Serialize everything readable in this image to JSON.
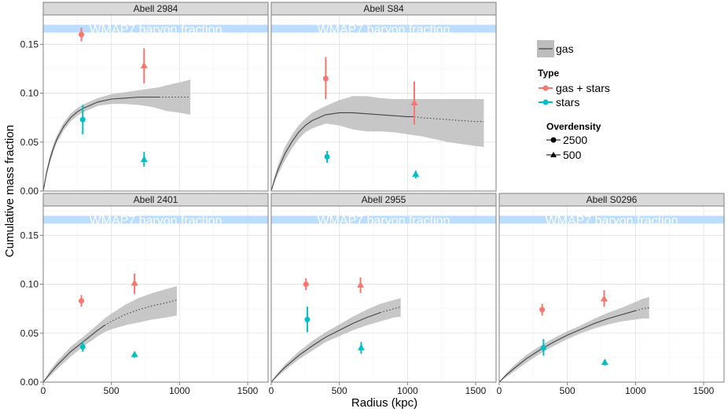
{
  "chart_data": {
    "type": "scatter",
    "xlabel": "Radius (kpc)",
    "ylabel": "Cumulative mass fraction",
    "xlim": [
      0,
      1650
    ],
    "ylim": [
      0,
      0.18
    ],
    "x_ticks": [
      "0",
      "500",
      "1000",
      "1500"
    ],
    "y_ticks": [
      "0.00",
      "0.05",
      "0.10",
      "0.15"
    ],
    "band": {
      "label": "WMAP7 baryon fraction",
      "ymin": 0.162,
      "ymax": 0.17,
      "color": "#BBDDFF"
    },
    "colors": {
      "gas_stars": "#F8766D",
      "stars": "#00BFC4",
      "gas_line": "#444444",
      "ribbon": "#BDBDBD"
    },
    "legend": {
      "gas_label": "gas",
      "type_title": "Type",
      "type_items": [
        "gas + stars",
        "stars"
      ],
      "overdensity_title": "Overdensity",
      "overdensity_items": [
        "2500",
        "500"
      ]
    },
    "panels": [
      {
        "title": "Abell 2984",
        "curve": {
          "x": [
            0,
            25,
            50,
            75,
            100,
            150,
            200,
            250,
            300,
            400,
            500,
            600,
            700,
            800,
            850,
            900,
            1000,
            1080
          ],
          "y": [
            0,
            0.019,
            0.033,
            0.044,
            0.053,
            0.066,
            0.075,
            0.081,
            0.085,
            0.091,
            0.094,
            0.095,
            0.096,
            0.096,
            0.096,
            0.096,
            0.096,
            0.096
          ],
          "lo": [
            0,
            0.016,
            0.029,
            0.04,
            0.049,
            0.062,
            0.071,
            0.077,
            0.081,
            0.087,
            0.089,
            0.089,
            0.088,
            0.086,
            0.084,
            0.082,
            0.08,
            0.078
          ],
          "hi": [
            0,
            0.022,
            0.037,
            0.048,
            0.057,
            0.07,
            0.079,
            0.085,
            0.089,
            0.095,
            0.099,
            0.101,
            0.103,
            0.105,
            0.106,
            0.108,
            0.111,
            0.114
          ],
          "solid_to": 850
        },
        "points": [
          {
            "type": "gas + stars",
            "overdensity": "2500",
            "x": 280,
            "y": 0.16,
            "lo": 0.153,
            "hi": 0.167
          },
          {
            "type": "stars",
            "overdensity": "2500",
            "x": 290,
            "y": 0.073,
            "lo": 0.058,
            "hi": 0.088
          },
          {
            "type": "gas + stars",
            "overdensity": "500",
            "x": 740,
            "y": 0.128,
            "lo": 0.11,
            "hi": 0.146
          },
          {
            "type": "stars",
            "overdensity": "500",
            "x": 740,
            "y": 0.032,
            "lo": 0.025,
            "hi": 0.04
          }
        ]
      },
      {
        "title": "Abell S84",
        "curve": {
          "x": [
            0,
            25,
            50,
            75,
            100,
            150,
            200,
            250,
            300,
            400,
            500,
            600,
            700,
            800,
            900,
            1000,
            1050,
            1100,
            1200,
            1300,
            1400,
            1500,
            1560
          ],
          "y": [
            0,
            0.012,
            0.022,
            0.03,
            0.038,
            0.05,
            0.06,
            0.067,
            0.072,
            0.078,
            0.08,
            0.08,
            0.079,
            0.078,
            0.077,
            0.076,
            0.076,
            0.075,
            0.074,
            0.073,
            0.072,
            0.071,
            0.071
          ],
          "lo": [
            0,
            0.009,
            0.017,
            0.024,
            0.031,
            0.043,
            0.053,
            0.06,
            0.064,
            0.069,
            0.067,
            0.063,
            0.061,
            0.061,
            0.06,
            0.058,
            0.057,
            0.056,
            0.053,
            0.05,
            0.048,
            0.046,
            0.045
          ],
          "hi": [
            0,
            0.015,
            0.027,
            0.036,
            0.045,
            0.057,
            0.067,
            0.074,
            0.08,
            0.087,
            0.093,
            0.097,
            0.097,
            0.095,
            0.094,
            0.094,
            0.094,
            0.094,
            0.094,
            0.094,
            0.094,
            0.094,
            0.094
          ],
          "solid_to": 1050
        },
        "points": [
          {
            "type": "gas + stars",
            "overdensity": "2500",
            "x": 400,
            "y": 0.115,
            "lo": 0.094,
            "hi": 0.137
          },
          {
            "type": "stars",
            "overdensity": "2500",
            "x": 410,
            "y": 0.035,
            "lo": 0.029,
            "hi": 0.041
          },
          {
            "type": "gas + stars",
            "overdensity": "500",
            "x": 1050,
            "y": 0.09,
            "lo": 0.068,
            "hi": 0.112
          },
          {
            "type": "stars",
            "overdensity": "500",
            "x": 1060,
            "y": 0.017,
            "lo": 0.013,
            "hi": 0.021
          }
        ]
      },
      {
        "title": "Abell 2401",
        "curve": {
          "x": [
            0,
            50,
            100,
            200,
            300,
            400,
            450,
            500,
            600,
            700,
            800,
            900,
            980
          ],
          "y": [
            0,
            0.009,
            0.017,
            0.031,
            0.042,
            0.053,
            0.058,
            0.062,
            0.069,
            0.074,
            0.078,
            0.081,
            0.084
          ],
          "lo": [
            0,
            0.006,
            0.013,
            0.026,
            0.037,
            0.047,
            0.051,
            0.054,
            0.058,
            0.061,
            0.064,
            0.066,
            0.068
          ],
          "hi": [
            0,
            0.012,
            0.021,
            0.036,
            0.047,
            0.059,
            0.065,
            0.07,
            0.079,
            0.086,
            0.091,
            0.095,
            0.098
          ],
          "solid_to": 450
        },
        "points": [
          {
            "type": "gas + stars",
            "overdensity": "2500",
            "x": 280,
            "y": 0.083,
            "lo": 0.077,
            "hi": 0.089
          },
          {
            "type": "stars",
            "overdensity": "2500",
            "x": 290,
            "y": 0.036,
            "lo": 0.031,
            "hi": 0.042
          },
          {
            "type": "gas + stars",
            "overdensity": "500",
            "x": 670,
            "y": 0.101,
            "lo": 0.09,
            "hi": 0.111
          },
          {
            "type": "stars",
            "overdensity": "500",
            "x": 670,
            "y": 0.028,
            "lo": 0.025,
            "hi": 0.031
          }
        ]
      },
      {
        "title": "Abell 2955",
        "curve": {
          "x": [
            0,
            50,
            100,
            200,
            300,
            400,
            500,
            600,
            700,
            800,
            850,
            900,
            950
          ],
          "y": [
            0,
            0.008,
            0.015,
            0.027,
            0.037,
            0.046,
            0.053,
            0.06,
            0.066,
            0.071,
            0.073,
            0.075,
            0.077
          ],
          "lo": [
            0,
            0.006,
            0.012,
            0.023,
            0.032,
            0.041,
            0.047,
            0.053,
            0.058,
            0.062,
            0.064,
            0.066,
            0.067
          ],
          "hi": [
            0,
            0.01,
            0.018,
            0.031,
            0.042,
            0.051,
            0.059,
            0.067,
            0.074,
            0.08,
            0.082,
            0.084,
            0.086
          ],
          "solid_to": 800
        },
        "points": [
          {
            "type": "gas + stars",
            "overdensity": "2500",
            "x": 255,
            "y": 0.1,
            "lo": 0.094,
            "hi": 0.106
          },
          {
            "type": "stars",
            "overdensity": "2500",
            "x": 265,
            "y": 0.064,
            "lo": 0.051,
            "hi": 0.077
          },
          {
            "type": "gas + stars",
            "overdensity": "500",
            "x": 655,
            "y": 0.099,
            "lo": 0.091,
            "hi": 0.107
          },
          {
            "type": "stars",
            "overdensity": "500",
            "x": 660,
            "y": 0.035,
            "lo": 0.029,
            "hi": 0.041
          }
        ]
      },
      {
        "title": "Abell S0296",
        "curve": {
          "x": [
            0,
            50,
            100,
            200,
            300,
            400,
            500,
            600,
            700,
            800,
            900,
            1000,
            1050,
            1100
          ],
          "y": [
            0,
            0.007,
            0.013,
            0.024,
            0.033,
            0.041,
            0.048,
            0.054,
            0.06,
            0.065,
            0.069,
            0.073,
            0.075,
            0.076
          ],
          "lo": [
            0,
            0.005,
            0.01,
            0.02,
            0.029,
            0.037,
            0.044,
            0.05,
            0.055,
            0.059,
            0.062,
            0.064,
            0.065,
            0.065
          ],
          "hi": [
            0,
            0.009,
            0.016,
            0.028,
            0.037,
            0.045,
            0.052,
            0.058,
            0.065,
            0.071,
            0.076,
            0.082,
            0.085,
            0.087
          ],
          "solid_to": 1000
        },
        "points": [
          {
            "type": "gas + stars",
            "overdensity": "2500",
            "x": 315,
            "y": 0.074,
            "lo": 0.068,
            "hi": 0.08
          },
          {
            "type": "stars",
            "overdensity": "2500",
            "x": 325,
            "y": 0.035,
            "lo": 0.027,
            "hi": 0.044
          },
          {
            "type": "gas + stars",
            "overdensity": "500",
            "x": 770,
            "y": 0.085,
            "lo": 0.077,
            "hi": 0.094
          },
          {
            "type": "stars",
            "overdensity": "500",
            "x": 775,
            "y": 0.02,
            "lo": 0.017,
            "hi": 0.023
          }
        ]
      }
    ]
  }
}
